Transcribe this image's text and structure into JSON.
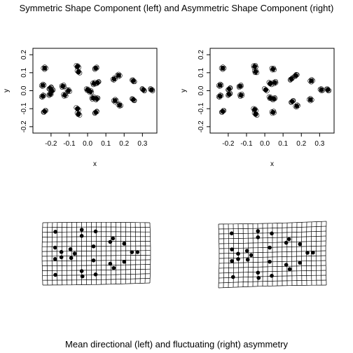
{
  "page_title": "Symmetric Shape Component (left) and Asymmetric Shape Component (right)",
  "bottom_title": "Mean directional (left) and fluctuating (right) asymmetry",
  "chart_data": [
    {
      "type": "scatter",
      "name": "symmetric-shape-component",
      "xlabel": "x",
      "ylabel": "y",
      "xlim": [
        -0.28,
        0.36
      ],
      "ylim": [
        -0.22,
        0.22
      ],
      "xticks": [
        "-0.2",
        "-0.1",
        "0.0",
        "0.1",
        "0.2",
        "0.3"
      ],
      "yticks": [
        "-0.2",
        "-0.1",
        "0.0",
        "0.1",
        "0.2"
      ],
      "points": [
        [
          -0.235,
          0.125
        ],
        [
          -0.245,
          0.03
        ],
        [
          -0.245,
          -0.03
        ],
        [
          -0.235,
          -0.115
        ],
        [
          -0.205,
          0.015
        ],
        [
          -0.195,
          0.0
        ],
        [
          -0.205,
          -0.02
        ],
        [
          -0.135,
          0.025
        ],
        [
          -0.125,
          -0.025
        ],
        [
          -0.105,
          0.0
        ],
        [
          -0.055,
          0.135
        ],
        [
          -0.05,
          0.105
        ],
        [
          -0.055,
          -0.1
        ],
        [
          -0.05,
          -0.13
        ],
        [
          0.0,
          0.005
        ],
        [
          0.015,
          -0.005
        ],
        [
          0.035,
          0.04
        ],
        [
          0.03,
          -0.04
        ],
        [
          0.045,
          0.125
        ],
        [
          0.045,
          -0.12
        ],
        [
          0.055,
          0.045
        ],
        [
          0.05,
          -0.045
        ],
        [
          0.145,
          0.065
        ],
        [
          0.15,
          -0.055
        ],
        [
          0.17,
          0.085
        ],
        [
          0.175,
          -0.08
        ],
        [
          0.25,
          0.055
        ],
        [
          0.25,
          -0.05
        ],
        [
          0.305,
          0.005
        ],
        [
          0.35,
          0.005
        ]
      ]
    },
    {
      "type": "scatter",
      "name": "asymmetric-shape-component",
      "xlabel": "x",
      "ylabel": "y",
      "xlim": [
        -0.28,
        0.36
      ],
      "ylim": [
        -0.22,
        0.22
      ],
      "xticks": [
        "-0.2",
        "-0.1",
        "0.0",
        "0.1",
        "0.2",
        "0.3"
      ],
      "yticks": [
        "-0.2",
        "-0.1",
        "0.0",
        "0.1",
        "0.2"
      ],
      "points": [
        [
          -0.23,
          0.125
        ],
        [
          -0.245,
          0.03
        ],
        [
          -0.245,
          -0.03
        ],
        [
          -0.23,
          -0.115
        ],
        [
          -0.195,
          0.01
        ],
        [
          -0.195,
          -0.02
        ],
        [
          -0.135,
          0.025
        ],
        [
          -0.13,
          -0.025
        ],
        [
          -0.055,
          0.135
        ],
        [
          -0.05,
          0.105
        ],
        [
          -0.055,
          -0.105
        ],
        [
          -0.05,
          -0.13
        ],
        [
          0.005,
          0.005
        ],
        [
          0.03,
          0.04
        ],
        [
          0.03,
          -0.04
        ],
        [
          0.045,
          0.12
        ],
        [
          0.045,
          -0.12
        ],
        [
          0.055,
          0.045
        ],
        [
          0.05,
          -0.045
        ],
        [
          0.145,
          0.065
        ],
        [
          0.15,
          -0.06
        ],
        [
          0.17,
          0.085
        ],
        [
          0.175,
          -0.085
        ],
        [
          0.255,
          0.055
        ],
        [
          0.25,
          -0.05
        ],
        [
          0.31,
          0.005
        ],
        [
          0.345,
          0.005
        ]
      ]
    },
    {
      "type": "scatter",
      "name": "mean-directional-asymmetry-grid",
      "points": [
        [
          -0.245,
          0.125
        ],
        [
          -0.245,
          0.035
        ],
        [
          -0.245,
          -0.03
        ],
        [
          -0.245,
          -0.12
        ],
        [
          -0.2,
          0.01
        ],
        [
          -0.2,
          -0.02
        ],
        [
          -0.135,
          0.025
        ],
        [
          -0.13,
          -0.025
        ],
        [
          -0.105,
          0.0
        ],
        [
          -0.055,
          0.135
        ],
        [
          -0.055,
          0.1
        ],
        [
          -0.055,
          -0.1
        ],
        [
          -0.05,
          -0.13
        ],
        [
          0.03,
          0.04
        ],
        [
          0.03,
          -0.04
        ],
        [
          0.045,
          0.125
        ],
        [
          0.045,
          -0.12
        ],
        [
          0.15,
          0.065
        ],
        [
          0.15,
          -0.06
        ],
        [
          0.17,
          0.085
        ],
        [
          0.175,
          -0.085
        ],
        [
          0.25,
          0.055
        ],
        [
          0.25,
          -0.05
        ],
        [
          0.305,
          0.005
        ],
        [
          0.345,
          0.005
        ]
      ]
    },
    {
      "type": "scatter",
      "name": "fluctuating-asymmetry-grid",
      "points": [
        [
          -0.245,
          0.125
        ],
        [
          -0.245,
          0.035
        ],
        [
          -0.245,
          -0.03
        ],
        [
          -0.235,
          -0.12
        ],
        [
          -0.2,
          0.01
        ],
        [
          -0.2,
          -0.02
        ],
        [
          -0.135,
          0.025
        ],
        [
          -0.13,
          -0.025
        ],
        [
          -0.105,
          0.0
        ],
        [
          -0.055,
          0.135
        ],
        [
          -0.055,
          0.1
        ],
        [
          -0.055,
          -0.1
        ],
        [
          -0.05,
          -0.13
        ],
        [
          0.03,
          0.04
        ],
        [
          0.03,
          -0.04
        ],
        [
          0.045,
          0.12
        ],
        [
          0.045,
          -0.12
        ],
        [
          0.15,
          0.065
        ],
        [
          0.15,
          -0.06
        ],
        [
          0.17,
          0.085
        ],
        [
          0.175,
          -0.085
        ],
        [
          0.25,
          0.055
        ],
        [
          0.25,
          -0.05
        ],
        [
          0.305,
          0.005
        ],
        [
          0.345,
          0.005
        ]
      ]
    }
  ]
}
